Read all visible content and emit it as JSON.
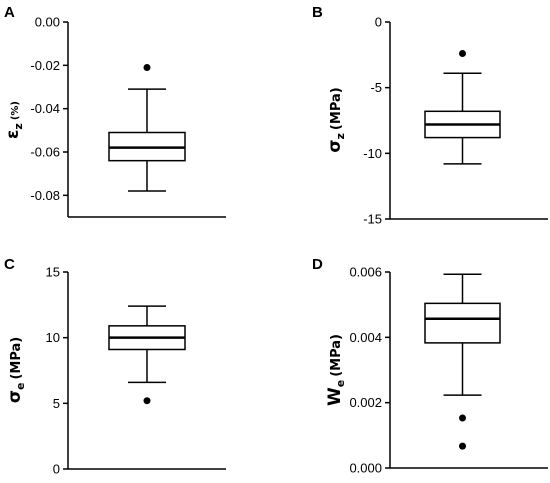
{
  "chart_data": [
    {
      "panel": "A",
      "type": "box",
      "ylabel": {
        "symbol": "ε",
        "sub": "z",
        "unit": "(%)"
      },
      "ylim": [
        -0.09,
        0.0
      ],
      "ticks": [
        0.0,
        -0.02,
        -0.04,
        -0.06,
        -0.08
      ],
      "tick_labels": [
        "0.00",
        "-0.02",
        "-0.04",
        "-0.06",
        "-0.08"
      ],
      "box": {
        "whisker_low": -0.078,
        "q1": -0.064,
        "median": -0.058,
        "q3": -0.051,
        "whisker_high": -0.031
      },
      "outliers": [
        -0.021
      ]
    },
    {
      "panel": "B",
      "type": "box",
      "ylabel": {
        "symbol": "σ",
        "sub": "z",
        "unit": "(MPa)"
      },
      "ylim": [
        -15,
        0
      ],
      "ticks": [
        0,
        -5,
        -10,
        -15
      ],
      "tick_labels": [
        "0",
        "-5",
        "-10",
        "-15"
      ],
      "box": {
        "whisker_low": -10.8,
        "q1": -8.8,
        "median": -7.8,
        "q3": -6.8,
        "whisker_high": -3.9
      },
      "outliers": [
        -2.4
      ]
    },
    {
      "panel": "C",
      "type": "box",
      "ylabel": {
        "symbol": "σ",
        "sub": "e",
        "unit": "(MPa)"
      },
      "ylim": [
        0,
        15
      ],
      "ticks": [
        15,
        10,
        5,
        0
      ],
      "tick_labels": [
        "15",
        "10",
        "5",
        "0"
      ],
      "box": {
        "whisker_low": 6.6,
        "q1": 9.1,
        "median": 10.0,
        "q3": 10.9,
        "whisker_high": 12.4
      },
      "outliers": [
        5.2
      ]
    },
    {
      "panel": "D",
      "type": "box",
      "ylabel": {
        "symbol": "W",
        "sub": "e",
        "unit": "(MPa)"
      },
      "ylim": [
        0,
        0.006
      ],
      "ticks": [
        0.006,
        0.004,
        0.002,
        0.0
      ],
      "tick_labels": [
        "0.006",
        "0.004",
        "0.002",
        "0.000"
      ],
      "box": {
        "whisker_low": 0.00223,
        "q1": 0.00383,
        "median": 0.00457,
        "q3": 0.00504,
        "whisker_high": 0.00593
      },
      "outliers": [
        0.00153,
        0.00067
      ]
    }
  ]
}
